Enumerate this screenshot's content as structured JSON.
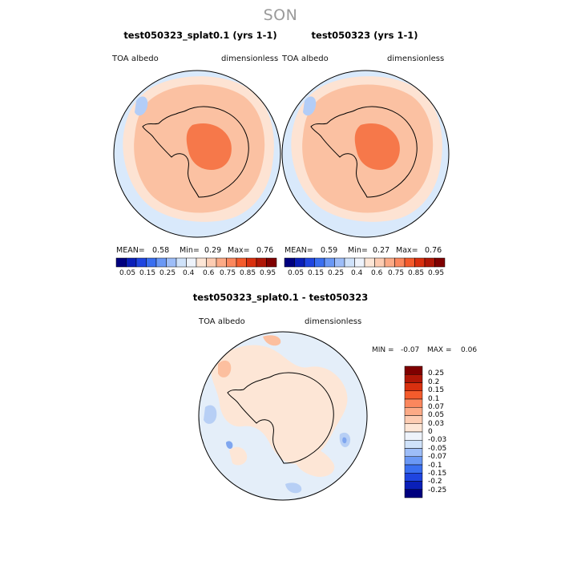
{
  "season": "SON",
  "panels": [
    {
      "title": "test050323_splat0.1 (yrs 1-1)",
      "variable": "TOA albedo",
      "units": "dimensionless",
      "stats": {
        "mean_label": "MEAN=",
        "mean": "0.58",
        "min_label": "Min=",
        "min": "0.29",
        "max_label": "Max=",
        "max": "0.76"
      }
    },
    {
      "title": "test050323 (yrs 1-1)",
      "variable": "TOA albedo",
      "units": "dimensionless",
      "stats": {
        "mean_label": "MEAN=",
        "mean": "0.59",
        "min_label": "Min=",
        "min": "0.27",
        "max_label": "Max=",
        "max": "0.76"
      }
    }
  ],
  "colorbar_main": {
    "labels": [
      "0.05",
      "0.15",
      "0.25",
      "0.4",
      "0.6",
      "0.75",
      "0.85",
      "0.95"
    ],
    "colors": [
      "#00007f",
      "#0a1fb8",
      "#1f45e0",
      "#3a6ff0",
      "#6a98f5",
      "#9dbdf8",
      "#cfe2fa",
      "#eef3fb",
      "#fde6d6",
      "#fdccb2",
      "#fcaa86",
      "#fb875d",
      "#f45b2c",
      "#d9300f",
      "#b01707",
      "#7f0000"
    ]
  },
  "difference": {
    "title": "test050323_splat0.1 - test050323",
    "variable": "TOA albedo",
    "units": "dimensionless",
    "stats": {
      "min_label": "MIN =",
      "min": "-0.07",
      "max_label": "MAX =",
      "max": "0.06"
    },
    "colorbar": {
      "labels": [
        "0.25",
        "0.2",
        "0.15",
        "0.1",
        "0.07",
        "0.05",
        "0.03",
        "0",
        "-0.03",
        "-0.05",
        "-0.07",
        "-0.1",
        "-0.15",
        "-0.2",
        "-0.25"
      ],
      "colors": [
        "#7f0000",
        "#b01707",
        "#d9300f",
        "#f45b2c",
        "#fb875d",
        "#fcaa86",
        "#fdccb2",
        "#fde6d6",
        "#eef3fb",
        "#cfe2fa",
        "#9dbdf8",
        "#6a98f5",
        "#3a6ff0",
        "#1f45e0",
        "#0a1fb8",
        "#00007f"
      ]
    }
  },
  "map_colors": {
    "ocean": "#d9e9fb",
    "land_mid": "#fbc1a2",
    "land_high": "#f6784a",
    "coast_band": "#fde3d3",
    "blue_patch": "#b3cdf7",
    "diff_bg": "#e4eef9",
    "diff_warm": "#fde6d6",
    "diff_warm2": "#fcbf9f",
    "diff_blue": "#b7cff5",
    "diff_blue2": "#7fa6ef"
  }
}
